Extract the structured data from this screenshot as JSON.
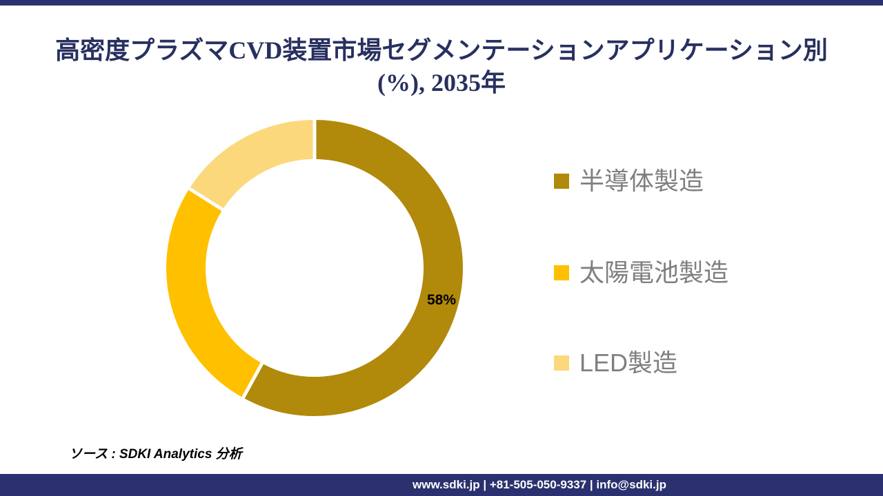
{
  "page": {
    "background": "#ffffff",
    "accent_navy": "#2A316E"
  },
  "title": {
    "line1": "高密度プラズマCVD装置市場セグメンテーションアプリケーション別",
    "line2": "(%), 2035年",
    "color": "#27305F"
  },
  "chart_data": {
    "type": "pie",
    "subtype": "donut",
    "title": "高密度プラズマCVD装置市場セグメンテーションアプリケーション別 (%), 2035年",
    "unit": "%",
    "year": "2035年",
    "start_angle_deg": 0,
    "donut_hole_ratio": 0.73,
    "legend_position": "right",
    "segments": [
      {
        "label": "半導体製造",
        "value": 58,
        "color": "#B1890B",
        "data_label": "58%"
      },
      {
        "label": "太陽電池製造",
        "value": 26,
        "color": "#FFC000",
        "data_label": ""
      },
      {
        "label": "LED製造",
        "value": 16,
        "color": "#FBD87C",
        "data_label": ""
      }
    ],
    "separator_color": "#FFFFFF"
  },
  "legend": {
    "text_color": "#7F7F7F"
  },
  "source": {
    "text": "ソース : SDKI Analytics 分析"
  },
  "footer": {
    "text": "www.sdki.jp | +81-505-050-9337 | info@sdki.jp",
    "background": "#2A316E",
    "text_color": "#FFFFFF"
  }
}
